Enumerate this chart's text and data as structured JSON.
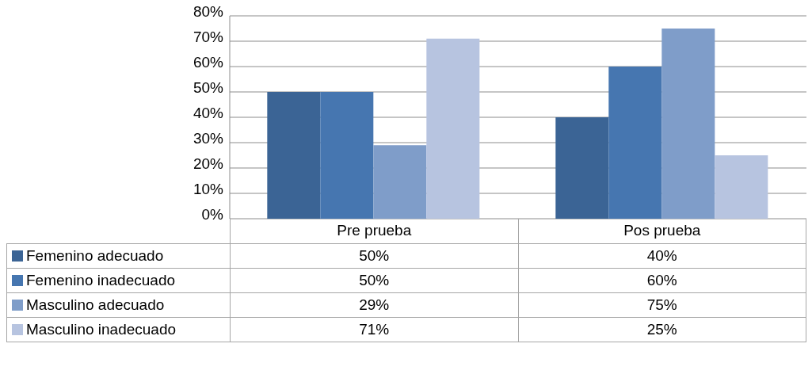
{
  "chart_data": {
    "type": "bar",
    "categories": [
      "Pre prueba",
      "Pos prueba"
    ],
    "series": [
      {
        "name": "Femenino adecuado",
        "color": "#3b6495",
        "values": [
          50,
          40
        ],
        "value_labels": [
          "50%",
          "40%"
        ]
      },
      {
        "name": "Femenino inadecuado",
        "color": "#4676b0",
        "values": [
          50,
          60
        ],
        "value_labels": [
          "50%",
          "60%"
        ]
      },
      {
        "name": "Masculino adecuado",
        "color": "#7f9dc9",
        "values": [
          29,
          75
        ],
        "value_labels": [
          "29%",
          "75%"
        ]
      },
      {
        "name": "Masculino inadecuado",
        "color": "#b7c4e0",
        "values": [
          71,
          25
        ],
        "value_labels": [
          "71%",
          "25%"
        ]
      }
    ],
    "ylim": [
      0,
      80
    ],
    "yticks": [
      {
        "value": 0,
        "label": "0%"
      },
      {
        "value": 10,
        "label": "10%"
      },
      {
        "value": 20,
        "label": "20%"
      },
      {
        "value": 30,
        "label": "30%"
      },
      {
        "value": 40,
        "label": "40%"
      },
      {
        "value": 50,
        "label": "50%"
      },
      {
        "value": 60,
        "label": "60%"
      },
      {
        "value": 70,
        "label": "70%"
      },
      {
        "value": 80,
        "label": "80%"
      }
    ],
    "grid": "y",
    "legend": "bottom"
  }
}
